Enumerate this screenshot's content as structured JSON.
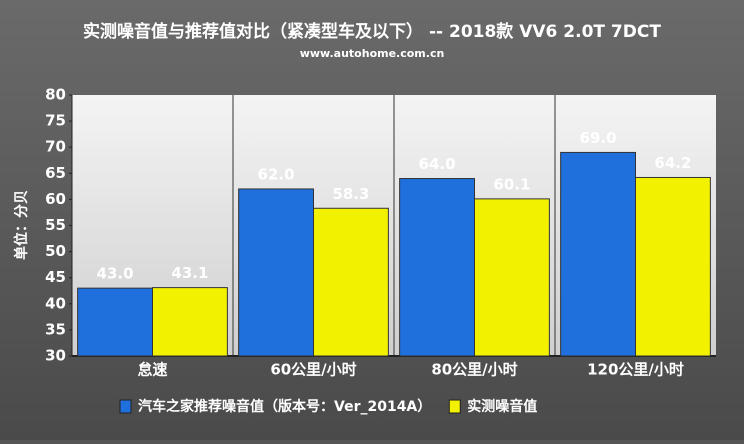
{
  "chart_data": {
    "type": "bar",
    "title": "实测噪音值与推荐值对比（紧凑型车及以下） --  2018款 VV6 2.0T 7DCT",
    "subtitle": "www.autohome.com.cn",
    "y_label": "单位：分贝",
    "categories": [
      "怠速",
      "60公里/小时",
      "80公里/小时",
      "120公里/小时"
    ],
    "series": [
      {
        "name": "汽车之家推荐噪音值（版本号：Ver_2014A）",
        "color": "#1f6fdc",
        "values": [
          43.0,
          62.0,
          64.0,
          69.0
        ],
        "value_labels": [
          "43.0",
          "62.0",
          "64.0",
          "69.0"
        ]
      },
      {
        "name": "实测噪音值",
        "color": "#f2f200",
        "values": [
          43.1,
          58.3,
          60.1,
          64.2
        ],
        "value_labels": [
          "43.1",
          "58.3",
          "60.1",
          "64.2"
        ]
      }
    ],
    "ylim": [
      30,
      80
    ],
    "yticks": [
      30,
      35,
      40,
      45,
      50,
      55,
      60,
      65,
      70,
      75,
      80
    ],
    "grid": false
  }
}
